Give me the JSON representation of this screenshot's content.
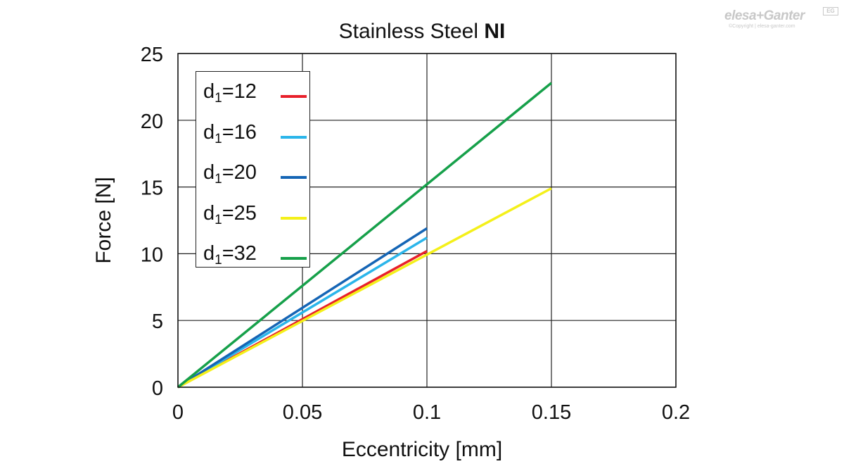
{
  "chart_data": {
    "type": "line",
    "title": "Stainless Steel",
    "title_bold": "NI",
    "xlabel": "Eccentricity [mm]",
    "ylabel": "Force [N]",
    "xlim": [
      0,
      0.2
    ],
    "ylim": [
      0,
      25
    ],
    "x_ticks": [
      "0",
      "0.05",
      "0.1",
      "0.15",
      "0.2"
    ],
    "y_ticks": [
      "0",
      "5",
      "10",
      "15",
      "20",
      "25"
    ],
    "grid": true,
    "legend_position": "top-left",
    "series": [
      {
        "name_prefix": "d",
        "name_sub": "1",
        "name_suffix": "=12",
        "color": "#e8202a",
        "x": [
          0,
          0.1
        ],
        "y": [
          0,
          10.2
        ]
      },
      {
        "name_prefix": "d",
        "name_sub": "1",
        "name_suffix": "=16",
        "color": "#2bb5ea",
        "x": [
          0,
          0.1
        ],
        "y": [
          0,
          11.2
        ]
      },
      {
        "name_prefix": "d",
        "name_sub": "1",
        "name_suffix": "=20",
        "color": "#1565b5",
        "x": [
          0,
          0.1
        ],
        "y": [
          0,
          11.9
        ]
      },
      {
        "name_prefix": "d",
        "name_sub": "1",
        "name_suffix": "=25",
        "color": "#f4f01a",
        "x": [
          0,
          0.15
        ],
        "y": [
          0,
          14.9
        ]
      },
      {
        "name_prefix": "d",
        "name_sub": "1",
        "name_suffix": "=32",
        "color": "#16a04a",
        "x": [
          0,
          0.15
        ],
        "y": [
          0,
          22.8
        ]
      }
    ]
  },
  "logo": {
    "wordmark": "elesa+Ganter",
    "badge": "EG",
    "copyright": "©Copyright | elesa-ganter.com"
  }
}
